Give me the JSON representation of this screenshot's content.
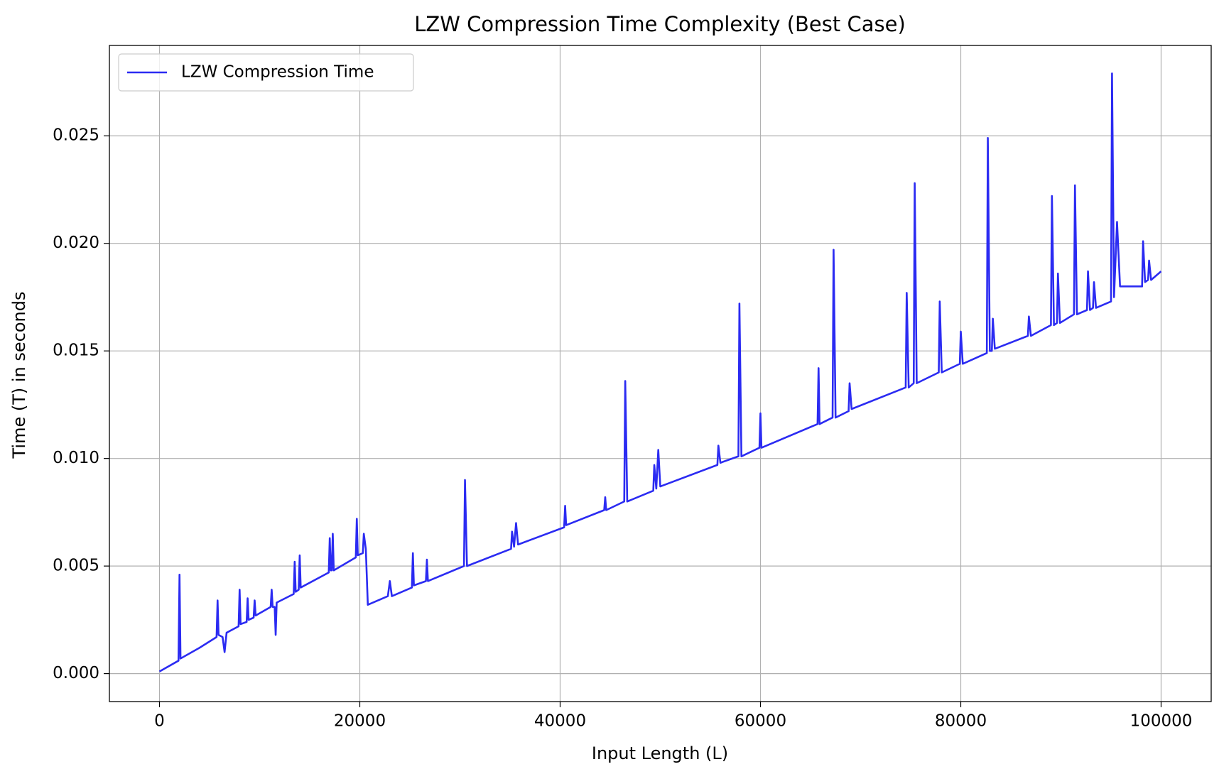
{
  "chart_data": {
    "type": "line",
    "title": "LZW Compression Time Complexity (Best Case)",
    "x_label": "Input Length (L)",
    "y_label": "Time (T) in seconds",
    "legend": "upper left",
    "grid": true,
    "xlim": [
      -5000,
      105000
    ],
    "ylim": [
      -0.0013,
      0.0292
    ],
    "xticks": [
      0,
      20000,
      40000,
      60000,
      80000,
      100000
    ],
    "yticks": [
      {
        "value": 0,
        "label": "0.000"
      },
      0.005,
      {
        "value": 0.01,
        "label": "0.010"
      },
      0.015,
      {
        "value": 0.02,
        "label": "0.020"
      },
      0.025
    ],
    "x": [
      0,
      1900,
      2000,
      2100,
      4000,
      5700,
      5800,
      5900,
      6300,
      6500,
      6700,
      7900,
      8000,
      8100,
      8700,
      8800,
      8900,
      9400,
      9500,
      9600,
      11100,
      11200,
      11300,
      11500,
      11600,
      11700,
      13400,
      13500,
      13600,
      13900,
      14000,
      14100,
      16900,
      17000,
      17100,
      17200,
      17300,
      17400,
      19600,
      19700,
      19800,
      20300,
      20400,
      20600,
      20800,
      22800,
      23000,
      23200,
      25200,
      25300,
      25400,
      26600,
      26700,
      26800,
      30400,
      30500,
      30700,
      35100,
      35200,
      35400,
      35600,
      35800,
      40400,
      40500,
      40600,
      44400,
      44500,
      44600,
      46400,
      46500,
      46700,
      49300,
      49400,
      49600,
      49800,
      50000,
      55700,
      55800,
      56000,
      57800,
      57900,
      58100,
      59900,
      60000,
      60100,
      65700,
      65800,
      65900,
      67200,
      67300,
      67500,
      68800,
      68900,
      69100,
      74500,
      74600,
      74800,
      75300,
      75400,
      75600,
      77800,
      77900,
      78100,
      79900,
      80000,
      80200,
      82600,
      82700,
      82900,
      83100,
      83200,
      83400,
      86700,
      86800,
      87000,
      89000,
      89100,
      89300,
      89600,
      89700,
      89900,
      91300,
      91400,
      91600,
      92600,
      92700,
      92900,
      93200,
      93300,
      93500,
      95000,
      95100,
      95300,
      95600,
      95900,
      98100,
      98200,
      98400,
      98700,
      98800,
      99000,
      100000
    ],
    "series": [
      {
        "name": "LZW Compression Time",
        "color": "#2b2bf2",
        "values": [
          0.0001,
          0.0006,
          0.0046,
          0.0007,
          0.0012,
          0.0017,
          0.0034,
          0.0018,
          0.0017,
          0.001,
          0.0019,
          0.0022,
          0.0039,
          0.0023,
          0.0024,
          0.0035,
          0.0025,
          0.0026,
          0.0034,
          0.0027,
          0.0031,
          0.0039,
          0.0031,
          0.0031,
          0.0018,
          0.0033,
          0.0037,
          0.0052,
          0.0038,
          0.0039,
          0.0055,
          0.004,
          0.0047,
          0.0063,
          0.0048,
          0.0048,
          0.0065,
          0.0048,
          0.0054,
          0.0072,
          0.0055,
          0.0056,
          0.0065,
          0.0058,
          0.0032,
          0.0036,
          0.0043,
          0.0036,
          0.004,
          0.0056,
          0.0041,
          0.0043,
          0.0053,
          0.0043,
          0.005,
          0.009,
          0.005,
          0.0058,
          0.0066,
          0.0059,
          0.007,
          0.006,
          0.0068,
          0.0078,
          0.0069,
          0.0076,
          0.0082,
          0.0076,
          0.008,
          0.0136,
          0.008,
          0.0085,
          0.0097,
          0.0086,
          0.0104,
          0.0087,
          0.0097,
          0.0106,
          0.0098,
          0.0101,
          0.0172,
          0.0101,
          0.0105,
          0.0121,
          0.0105,
          0.0116,
          0.0142,
          0.0116,
          0.0119,
          0.0197,
          0.0119,
          0.0122,
          0.0135,
          0.0123,
          0.0133,
          0.0177,
          0.0133,
          0.0135,
          0.0228,
          0.0135,
          0.014,
          0.0173,
          0.014,
          0.0144,
          0.0159,
          0.0144,
          0.0149,
          0.0249,
          0.015,
          0.015,
          0.0165,
          0.0151,
          0.0157,
          0.0166,
          0.0157,
          0.0162,
          0.0222,
          0.0162,
          0.0163,
          0.0186,
          0.0163,
          0.0167,
          0.0227,
          0.0167,
          0.0169,
          0.0187,
          0.0169,
          0.017,
          0.0182,
          0.017,
          0.0173,
          0.0279,
          0.0175,
          0.021,
          0.018,
          0.018,
          0.0201,
          0.0182,
          0.0183,
          0.0192,
          0.0183,
          0.0187
        ]
      }
    ]
  }
}
